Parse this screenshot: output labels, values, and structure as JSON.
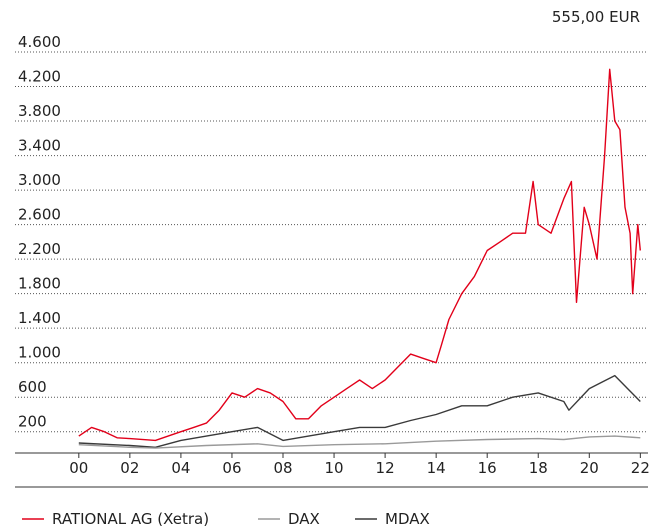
{
  "chart_data": {
    "type": "line",
    "annotation": "555,00 EUR",
    "xlim": [
      1997.5,
      2022.3
    ],
    "xticks": [
      {
        "value": 2000,
        "label": "00"
      },
      {
        "value": 2002,
        "label": "02"
      },
      {
        "value": 2004,
        "label": "04"
      },
      {
        "value": 2006,
        "label": "06"
      },
      {
        "value": 2008,
        "label": "08"
      },
      {
        "value": 2010,
        "label": "10"
      },
      {
        "value": 2012,
        "label": "12"
      },
      {
        "value": 2014,
        "label": "14"
      },
      {
        "value": 2016,
        "label": "16"
      },
      {
        "value": 2018,
        "label": "18"
      },
      {
        "value": 2020,
        "label": "20"
      },
      {
        "value": 2022,
        "label": "22"
      }
    ],
    "ylim": [
      0,
      4600
    ],
    "yticks": [
      200,
      600,
      {
        "value": 1000,
        "label": "1.000"
      },
      {
        "value": 1400,
        "label": "1.400"
      },
      {
        "value": 1800,
        "label": "1.800"
      },
      {
        "value": 2200,
        "label": "2.200"
      },
      {
        "value": 2600,
        "label": "2.600"
      },
      {
        "value": 3000,
        "label": "3.000"
      },
      {
        "value": 3400,
        "label": "3.400"
      },
      {
        "value": 3800,
        "label": "3.800"
      },
      {
        "value": 4200,
        "label": "4.200"
      },
      {
        "value": 4600,
        "label": "4.600"
      }
    ],
    "grid": true,
    "series": [
      {
        "name": "RATIONAL AG (Xetra)",
        "color": "#e2001a",
        "x": [
          2000,
          2000.5,
          2001,
          2001.5,
          2002,
          2003,
          2003.5,
          2004,
          2004.5,
          2005,
          2005.5,
          2006,
          2006.5,
          2007,
          2007.5,
          2008,
          2008.5,
          2009,
          2009.5,
          2010,
          2010.5,
          2011,
          2011.5,
          2012,
          2012.5,
          2013,
          2013.5,
          2014,
          2014.2,
          2014.5,
          2015,
          2015.5,
          2016,
          2016.5,
          2017,
          2017.5,
          2017.8,
          2018,
          2018.5,
          2019,
          2019.3,
          2019.5,
          2019.8,
          2020,
          2020.3,
          2020.6,
          2020.8,
          2021,
          2021.2,
          2021.4,
          2021.6,
          2021.7,
          2021.9,
          2022
        ],
        "values": [
          150,
          250,
          200,
          130,
          120,
          100,
          150,
          200,
          250,
          300,
          450,
          650,
          600,
          700,
          650,
          550,
          350,
          350,
          500,
          600,
          700,
          800,
          700,
          800,
          950,
          1100,
          1050,
          1000,
          1200,
          1500,
          1800,
          2000,
          2300,
          2400,
          2500,
          2500,
          3100,
          2600,
          2500,
          2900,
          3100,
          1700,
          2800,
          2600,
          2200,
          3400,
          4400,
          3800,
          3700,
          2800,
          2500,
          1800,
          2600,
          2300
        ]
      },
      {
        "name": "DAX",
        "color": "#9a9a9a",
        "x": [
          2000,
          2002,
          2003,
          2005,
          2007,
          2008,
          2010,
          2012,
          2014,
          2016,
          2018,
          2019,
          2020,
          2021,
          2022
        ],
        "values": [
          50,
          20,
          10,
          40,
          60,
          30,
          50,
          60,
          90,
          110,
          120,
          110,
          140,
          150,
          130
        ]
      },
      {
        "name": "MDAX",
        "color": "#3a3a3a",
        "x": [
          2000,
          2002,
          2003,
          2004,
          2005,
          2006,
          2007,
          2008,
          2009,
          2010,
          2011,
          2012,
          2013,
          2014,
          2015,
          2016,
          2017,
          2018,
          2019,
          2019.2,
          2020,
          2021,
          2021.5,
          2022
        ],
        "values": [
          70,
          40,
          20,
          100,
          150,
          200,
          250,
          100,
          150,
          200,
          250,
          250,
          330,
          400,
          500,
          500,
          600,
          650,
          550,
          450,
          700,
          850,
          700,
          550
        ]
      }
    ]
  }
}
